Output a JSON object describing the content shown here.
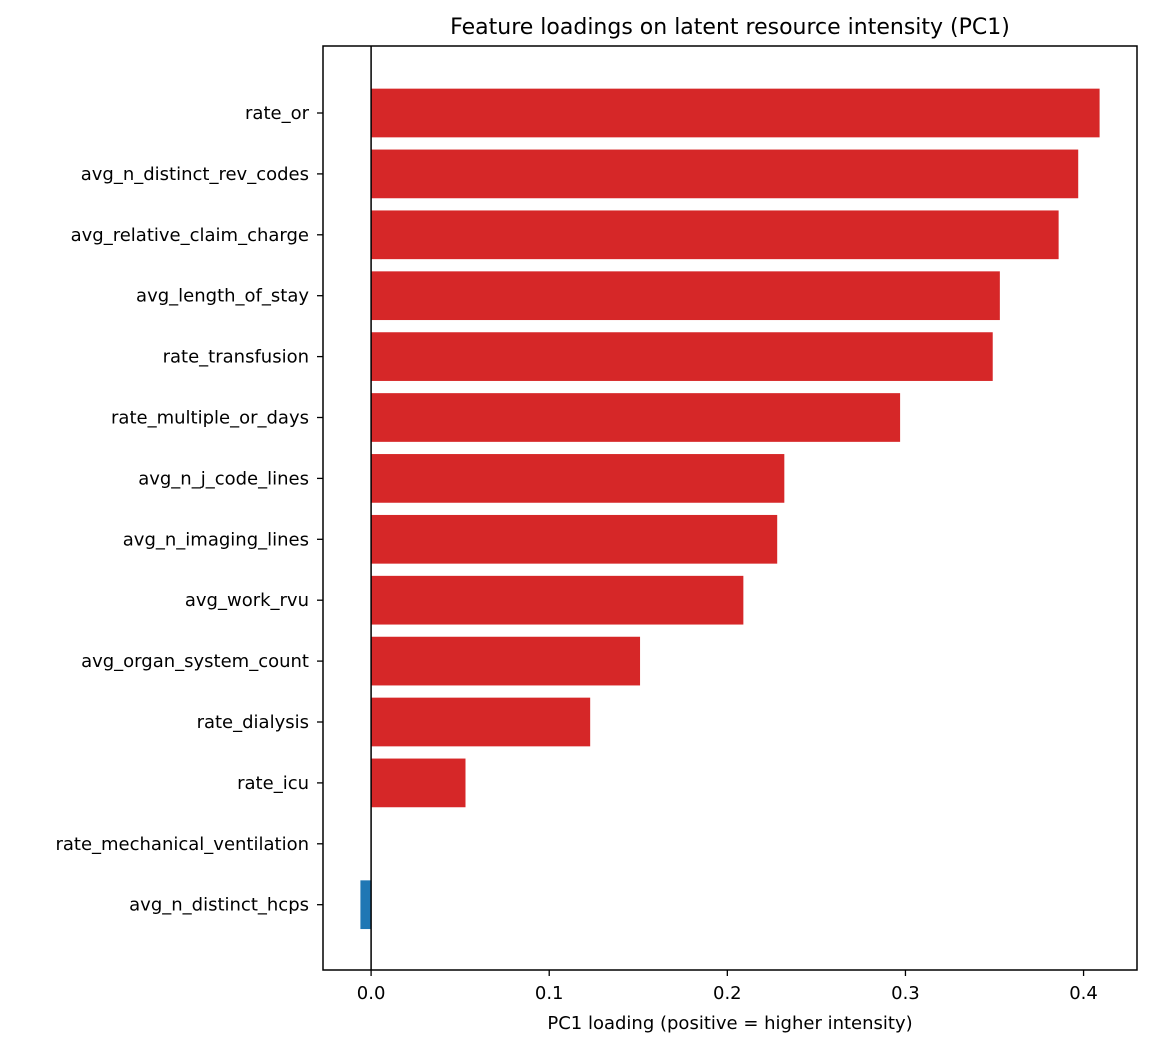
{
  "chart_data": {
    "type": "bar",
    "orientation": "horizontal",
    "title": "Feature loadings on latent resource intensity (PC1)",
    "xlabel": "PC1 loading (positive = higher intensity)",
    "ylabel": "",
    "xlim": [
      -0.027,
      0.43
    ],
    "xticks": [
      0.0,
      0.1,
      0.2,
      0.3,
      0.4
    ],
    "xtick_labels": [
      "0.0",
      "0.1",
      "0.2",
      "0.3",
      "0.4"
    ],
    "grid": false,
    "categories": [
      "rate_or",
      "avg_n_distinct_rev_codes",
      "avg_relative_claim_charge",
      "avg_length_of_stay",
      "rate_transfusion",
      "rate_multiple_or_days",
      "avg_n_j_code_lines",
      "avg_n_imaging_lines",
      "avg_work_rvu",
      "avg_organ_system_count",
      "rate_dialysis",
      "rate_icu",
      "rate_mechanical_ventilation",
      "avg_n_distinct_hcps"
    ],
    "values": [
      0.409,
      0.397,
      0.386,
      0.353,
      0.349,
      0.297,
      0.232,
      0.228,
      0.209,
      0.151,
      0.123,
      0.053,
      0.0,
      -0.006
    ],
    "colors": {
      "positive": "#d62728",
      "negative": "#1f77b4"
    },
    "zero_line": true
  }
}
